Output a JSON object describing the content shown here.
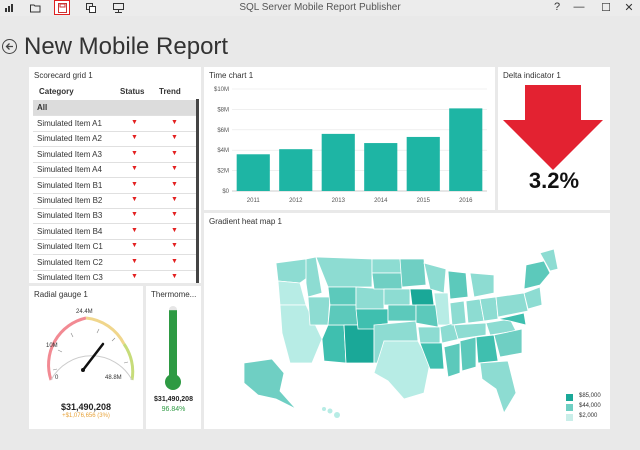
{
  "window": {
    "title": "SQL Server Mobile Report Publisher",
    "help": "?",
    "minimize": "—",
    "maximize": "☐",
    "close": "✕"
  },
  "page": {
    "title": "New Mobile Report"
  },
  "scorecard": {
    "title": "Scorecard grid 1",
    "headers": {
      "category": "Category",
      "status": "Status",
      "trend": "Trend"
    },
    "all_label": "All",
    "rows": [
      {
        "label": "Simulated Item A1",
        "status": "▼",
        "trend": "▼"
      },
      {
        "label": "Simulated Item A2",
        "status": "▼",
        "trend": "▼"
      },
      {
        "label": "Simulated Item A3",
        "status": "▼",
        "trend": "▼"
      },
      {
        "label": "Simulated Item A4",
        "status": "▼",
        "trend": "▼"
      },
      {
        "label": "Simulated Item B1",
        "status": "▼",
        "trend": "▼"
      },
      {
        "label": "Simulated Item B2",
        "status": "▼",
        "trend": "▼"
      },
      {
        "label": "Simulated Item B3",
        "status": "▼",
        "trend": "▼"
      },
      {
        "label": "Simulated Item B4",
        "status": "▼",
        "trend": "▼"
      },
      {
        "label": "Simulated Item C1",
        "status": "▼",
        "trend": "▼"
      },
      {
        "label": "Simulated Item C2",
        "status": "▼",
        "trend": "▼"
      },
      {
        "label": "Simulated Item C3",
        "status": "▼",
        "trend": "▼"
      }
    ]
  },
  "time_chart": {
    "title": "Time chart 1"
  },
  "chart_data": {
    "type": "bar",
    "title": "Time chart 1",
    "categories": [
      "2011",
      "2012",
      "2013",
      "2014",
      "2015",
      "2016"
    ],
    "values": [
      3.6,
      4.1,
      5.6,
      4.7,
      5.3,
      8.1
    ],
    "yticks": [
      "$0",
      "$2M",
      "$4M",
      "$6M",
      "$8M",
      "$10M"
    ],
    "ylim": [
      0,
      10
    ],
    "color": "#1eb5a4"
  },
  "delta": {
    "title": "Delta indicator 1",
    "value": "3.2%",
    "color": "#e32231"
  },
  "gauge": {
    "title": "Radial gauge 1",
    "labels": {
      "zero": "0",
      "ten": "10M",
      "mid": "24.4M",
      "max": "48.8M"
    },
    "value": "$31,490,208",
    "delta": "+$1,076,656 (3%)",
    "delta_color": "#e8a33a",
    "fraction": 0.645
  },
  "thermometer": {
    "title": "Thermome...",
    "value": "$31,490,208",
    "percent": "96.84%",
    "fill_fraction": 0.9684,
    "color": "#2e9a43"
  },
  "heatmap": {
    "title": "Gradient heat map 1",
    "legend": [
      {
        "label": "$85,000",
        "color": "#1aa898"
      },
      {
        "label": "$44,000",
        "color": "#6fcfc3"
      },
      {
        "label": "$2,000",
        "color": "#c9eee9"
      }
    ]
  }
}
